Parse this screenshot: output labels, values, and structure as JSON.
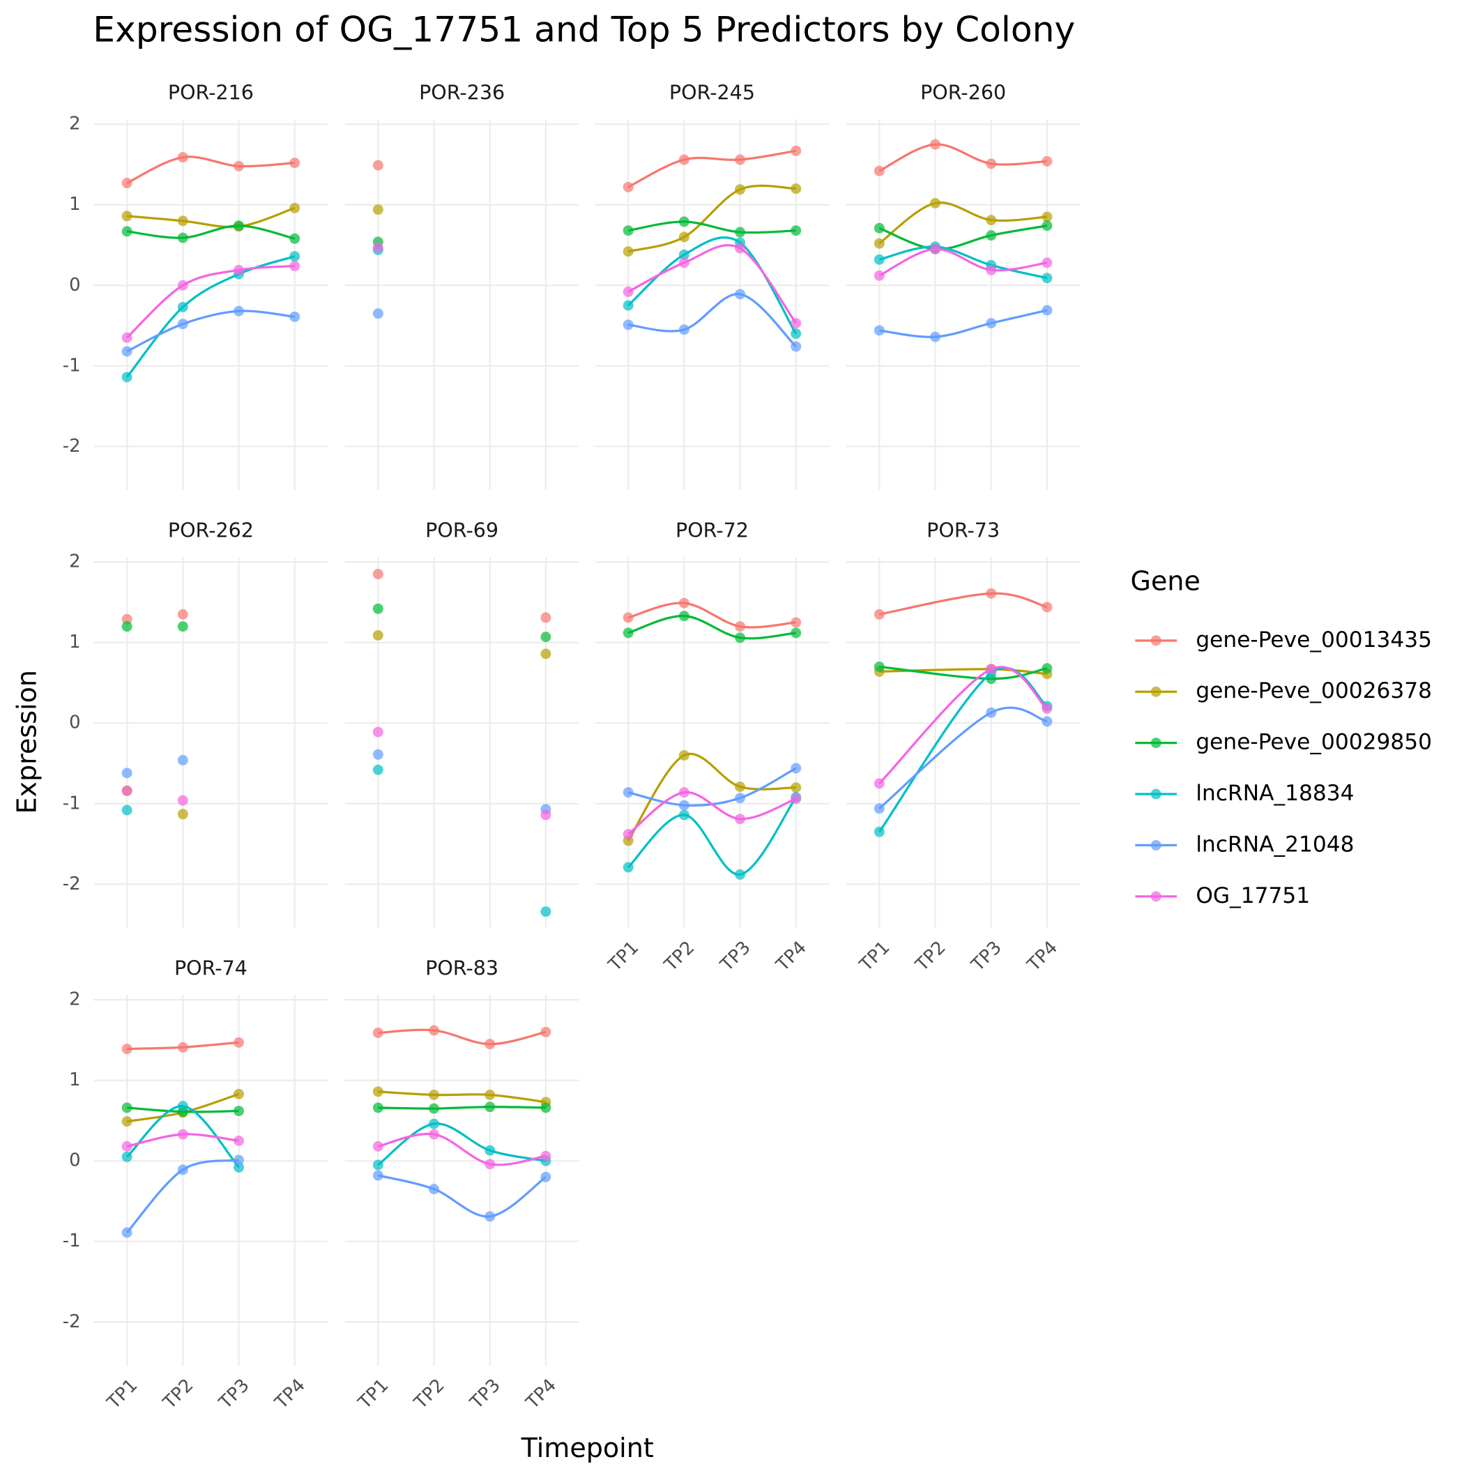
{
  "chart_data": {
    "type": "line",
    "title": "Expression of OG_17751 and Top 5 Predictors by Colony",
    "x_label": "Timepoint",
    "y_label": "Expression",
    "legend_title": "Gene",
    "legend": "right",
    "grid": true,
    "categories": [
      "TP1",
      "TP2",
      "TP3",
      "TP4"
    ],
    "ylim": [
      -2.54,
      2.06
    ],
    "yticks": [
      -2,
      -1,
      0,
      1,
      2
    ],
    "series": [
      {
        "name": "gene-Peve_00013435",
        "color": "#F8766D"
      },
      {
        "name": "gene-Peve_00026378",
        "color": "#B79F00"
      },
      {
        "name": "gene-Peve_00029850",
        "color": "#00BA38"
      },
      {
        "name": "lncRNA_18834",
        "color": "#00BFC4"
      },
      {
        "name": "lncRNA_21048",
        "color": "#619CFF"
      },
      {
        "name": "OG_17751",
        "color": "#F564E3"
      }
    ],
    "facets": [
      {
        "title": "POR-216",
        "values": [
          [
            1.27,
            1.59,
            1.48,
            1.52
          ],
          [
            0.86,
            0.8,
            0.73,
            0.96
          ],
          [
            0.67,
            0.59,
            0.74,
            0.58
          ],
          [
            -1.14,
            -0.27,
            0.14,
            0.36
          ],
          [
            -0.82,
            -0.48,
            -0.32,
            -0.39
          ],
          [
            -0.65,
            0.0,
            0.19,
            0.24
          ]
        ]
      },
      {
        "title": "POR-236",
        "values": [
          [
            1.49,
            null,
            null,
            null
          ],
          [
            0.94,
            null,
            null,
            null
          ],
          [
            0.54,
            null,
            null,
            null
          ],
          [
            0.44,
            null,
            null,
            null
          ],
          [
            -0.35,
            null,
            null,
            null
          ],
          [
            0.47,
            null,
            null,
            null
          ]
        ]
      },
      {
        "title": "POR-245",
        "values": [
          [
            1.22,
            1.56,
            1.56,
            1.67
          ],
          [
            0.42,
            0.6,
            1.19,
            1.2
          ],
          [
            0.68,
            0.79,
            0.66,
            0.68
          ],
          [
            -0.25,
            0.38,
            0.53,
            -0.6
          ],
          [
            -0.49,
            -0.55,
            -0.11,
            -0.76
          ],
          [
            -0.08,
            0.28,
            0.46,
            -0.47
          ]
        ]
      },
      {
        "title": "POR-260",
        "values": [
          [
            1.42,
            1.75,
            1.51,
            1.54
          ],
          [
            0.52,
            1.02,
            0.81,
            0.85
          ],
          [
            0.71,
            0.45,
            0.62,
            0.74
          ],
          [
            0.32,
            0.48,
            0.25,
            0.09
          ],
          [
            -0.56,
            -0.64,
            -0.47,
            -0.31
          ],
          [
            0.12,
            0.45,
            0.19,
            0.28
          ]
        ]
      },
      {
        "title": "POR-262",
        "values": [
          [
            1.29,
            1.35,
            null,
            null
          ],
          [
            -0.84,
            -1.13,
            null,
            null
          ],
          [
            1.2,
            1.2,
            null,
            null
          ],
          [
            -1.08,
            null,
            null,
            null
          ],
          [
            -0.62,
            -0.46,
            null,
            null
          ],
          [
            -0.84,
            -0.96,
            null,
            null
          ]
        ]
      },
      {
        "title": "POR-69",
        "values": [
          [
            1.85,
            null,
            null,
            1.31
          ],
          [
            1.09,
            null,
            null,
            0.86
          ],
          [
            1.42,
            null,
            null,
            1.07
          ],
          [
            -0.58,
            null,
            null,
            -2.34
          ],
          [
            -0.39,
            null,
            null,
            -1.07
          ],
          [
            -0.11,
            null,
            null,
            -1.14
          ]
        ]
      },
      {
        "title": "POR-72",
        "values": [
          [
            1.31,
            1.49,
            1.2,
            1.25
          ],
          [
            -1.46,
            -0.4,
            -0.79,
            -0.8
          ],
          [
            1.12,
            1.33,
            1.06,
            1.12
          ],
          [
            -1.79,
            -1.14,
            -1.88,
            -0.92
          ],
          [
            -0.86,
            -1.02,
            -0.93,
            -0.56
          ],
          [
            -1.38,
            -0.86,
            -1.19,
            -0.94
          ]
        ]
      },
      {
        "title": "POR-73",
        "values": [
          [
            1.35,
            null,
            1.61,
            1.44
          ],
          [
            0.64,
            null,
            0.67,
            0.61
          ],
          [
            0.7,
            null,
            0.55,
            0.68
          ],
          [
            -1.35,
            null,
            0.62,
            0.21
          ],
          [
            -1.06,
            null,
            0.13,
            0.02
          ],
          [
            -0.75,
            null,
            0.67,
            0.18
          ]
        ]
      },
      {
        "title": "POR-74",
        "values": [
          [
            1.39,
            1.41,
            1.47,
            null
          ],
          [
            0.49,
            0.6,
            0.83,
            null
          ],
          [
            0.66,
            0.61,
            0.62,
            null
          ],
          [
            0.05,
            0.68,
            -0.08,
            null
          ],
          [
            -0.89,
            -0.11,
            0.01,
            null
          ],
          [
            0.18,
            0.33,
            0.25,
            null
          ]
        ]
      },
      {
        "title": "POR-83",
        "values": [
          [
            1.59,
            1.62,
            1.45,
            1.6
          ],
          [
            0.86,
            0.82,
            0.82,
            0.73
          ],
          [
            0.66,
            0.65,
            0.67,
            0.66
          ],
          [
            -0.05,
            0.46,
            0.13,
            0.0
          ],
          [
            -0.18,
            -0.35,
            -0.69,
            -0.2
          ],
          [
            0.18,
            0.33,
            -0.04,
            0.06
          ]
        ]
      }
    ]
  }
}
